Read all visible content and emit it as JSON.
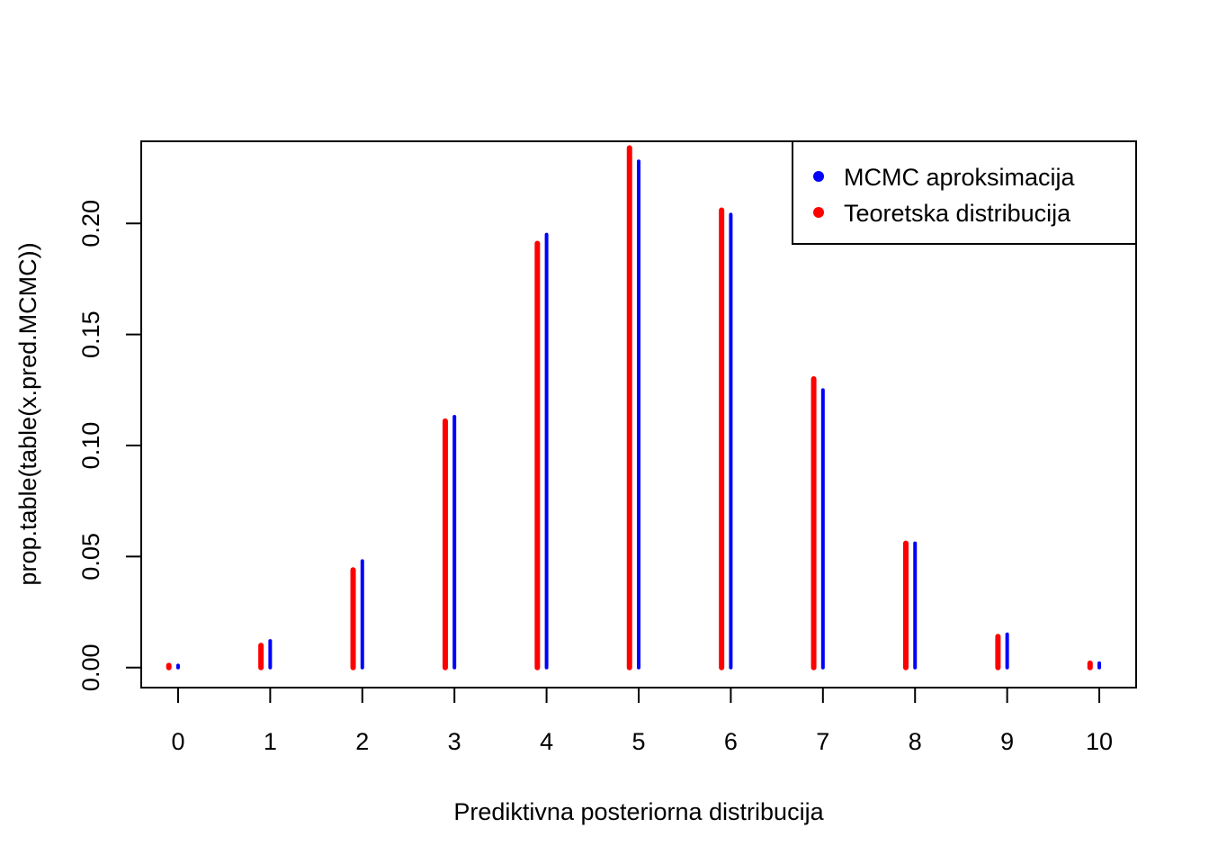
{
  "chart_data": {
    "type": "bar",
    "title": "",
    "xlabel": "Prediktivna posteriorna distribucija",
    "ylabel": "prop.table(table(x.pred.MCMC))",
    "categories": [
      "0",
      "1",
      "2",
      "3",
      "4",
      "5",
      "6",
      "7",
      "8",
      "9",
      "10"
    ],
    "x": [
      0,
      1,
      2,
      3,
      4,
      5,
      6,
      7,
      8,
      9,
      10
    ],
    "xlim": [
      -0.4,
      10.4
    ],
    "ylim": [
      -0.009,
      0.237
    ],
    "yticks": [
      0.0,
      0.05,
      0.1,
      0.15,
      0.2
    ],
    "ytick_labels": [
      "0.00",
      "0.05",
      "0.10",
      "0.15",
      "0.20"
    ],
    "series": [
      {
        "name": "MCMC aproksimacija",
        "color": "#0000ff",
        "offset": 0,
        "values": [
          0.001,
          0.012,
          0.048,
          0.113,
          0.195,
          0.228,
          0.204,
          0.125,
          0.056,
          0.015,
          0.002
        ]
      },
      {
        "name": "Teoretska distribucija",
        "color": "#ff0000",
        "offset": -0.1,
        "values": [
          0.001,
          0.01,
          0.044,
          0.111,
          0.191,
          0.234,
          0.206,
          0.13,
          0.056,
          0.014,
          0.002
        ]
      }
    ],
    "legend": {
      "position": "top-right",
      "entries": [
        {
          "label": "MCMC aproksimacija",
          "color": "#0000ff"
        },
        {
          "label": "Teoretska distribucija",
          "color": "#ff0000"
        }
      ]
    },
    "grid": false
  }
}
